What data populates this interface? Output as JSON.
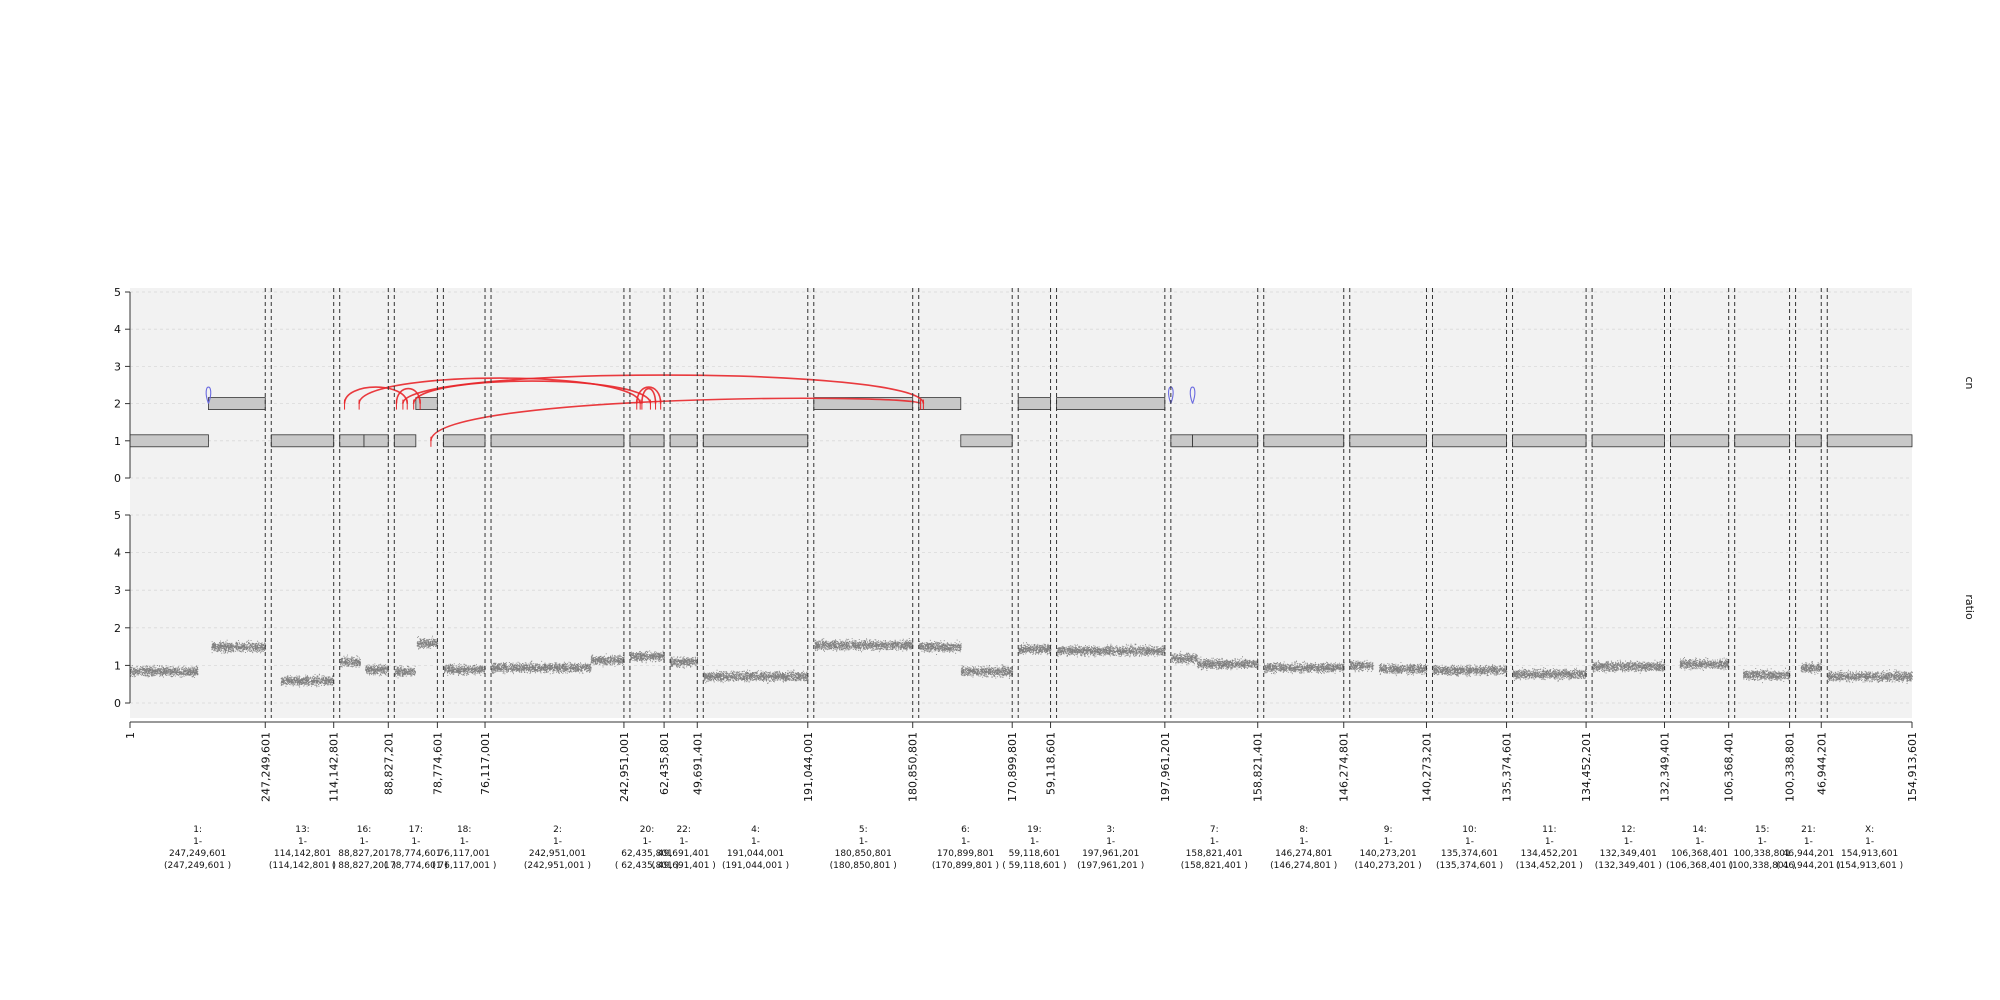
{
  "chart_data": {
    "type": "scatter",
    "title": "",
    "tracks": [
      {
        "name": "cn",
        "ylim": [
          0,
          5
        ],
        "yticks": [
          0,
          1,
          2,
          3,
          4,
          5
        ]
      },
      {
        "name": "ratio",
        "ylim": [
          0,
          5
        ],
        "yticks": [
          0,
          1,
          2,
          3,
          4,
          5
        ]
      }
    ],
    "grid": true,
    "x_axis_labels": [
      "1",
      "247,249,601",
      "114,142,801",
      "88,827,201",
      "78,774,601",
      "76,117,001",
      "242,951,001",
      "62,435,801",
      "49,691,401",
      "191,044,001",
      "180,850,801",
      "170,899,801",
      "59,118,601",
      "197,961,201",
      "158,821,401",
      "146,274,801",
      "140,273,201",
      "135,374,601",
      "134,452,201",
      "132,349,401",
      "106,368,401",
      "100,338,801",
      "46,944,201",
      "154,913,601"
    ],
    "windows": [
      {
        "chrom": "1",
        "lines": [
          "1:",
          "1-",
          "247,249,601",
          "(247,249,601 )"
        ],
        "length": 247249601
      },
      {
        "chrom": "13",
        "lines": [
          "13:",
          "1-",
          "114,142,801",
          "(114,142,801 )"
        ],
        "length": 114142801
      },
      {
        "chrom": "16",
        "lines": [
          "16:",
          "1-",
          "88,827,201",
          "( 88,827,201 )"
        ],
        "length": 88827201
      },
      {
        "chrom": "17",
        "lines": [
          "17:",
          "1-",
          "78,774,601",
          "( 78,774,601 )"
        ],
        "length": 78774601
      },
      {
        "chrom": "18",
        "lines": [
          "18:",
          "1-",
          "76,117,001",
          "( 76,117,001 )"
        ],
        "length": 76117001
      },
      {
        "chrom": "2",
        "lines": [
          "2:",
          "1-",
          "242,951,001",
          "(242,951,001 )"
        ],
        "length": 242951001
      },
      {
        "chrom": "20",
        "lines": [
          "20:",
          "1-",
          "62,435,801",
          "( 62,435,801 )"
        ],
        "length": 62435801
      },
      {
        "chrom": "22",
        "lines": [
          "22:",
          "1-",
          "49,691,401",
          "( 49,691,401 )"
        ],
        "length": 49691401
      },
      {
        "chrom": "4",
        "lines": [
          "4:",
          "1-",
          "191,044,001",
          "(191,044,001 )"
        ],
        "length": 191044001
      },
      {
        "chrom": "5",
        "lines": [
          "5:",
          "1-",
          "180,850,801",
          "(180,850,801 )"
        ],
        "length": 180850801
      },
      {
        "chrom": "6",
        "lines": [
          "6:",
          "1-",
          "170,899,801",
          "(170,899,801 )"
        ],
        "length": 170899801
      },
      {
        "chrom": "19",
        "lines": [
          "19:",
          "1-",
          "59,118,601",
          "( 59,118,601 )"
        ],
        "length": 59118601
      },
      {
        "chrom": "3",
        "lines": [
          "3:",
          "1-",
          "197,961,201",
          "(197,961,201 )"
        ],
        "length": 197961201
      },
      {
        "chrom": "7",
        "lines": [
          "7:",
          "1-",
          "158,821,401",
          "(158,821,401 )"
        ],
        "length": 158821401
      },
      {
        "chrom": "8",
        "lines": [
          "8:",
          "1-",
          "146,274,801",
          "(146,274,801 )"
        ],
        "length": 146274801
      },
      {
        "chrom": "9",
        "lines": [
          "9:",
          "1-",
          "140,273,201",
          "(140,273,201 )"
        ],
        "length": 140273201
      },
      {
        "chrom": "10",
        "lines": [
          "10:",
          "1-",
          "135,374,601",
          "(135,374,601 )"
        ],
        "length": 135374601
      },
      {
        "chrom": "11",
        "lines": [
          "11:",
          "1-",
          "134,452,201",
          "(134,452,201 )"
        ],
        "length": 134452201
      },
      {
        "chrom": "12",
        "lines": [
          "12:",
          "1-",
          "132,349,401",
          "(132,349,401 )"
        ],
        "length": 132349401
      },
      {
        "chrom": "14",
        "lines": [
          "14:",
          "1-",
          "106,368,401",
          "(106,368,401 )"
        ],
        "length": 106368401
      },
      {
        "chrom": "15",
        "lines": [
          "15:",
          "1-",
          "100,338,801",
          "(100,338,801 )"
        ],
        "length": 100338801
      },
      {
        "chrom": "21",
        "lines": [
          "21:",
          "1-",
          "46,944,201",
          "( 46,944,201 )"
        ],
        "length": 46944201
      },
      {
        "chrom": "X",
        "lines": [
          "X:",
          "1-",
          "154,913,601",
          "(154,913,601 )"
        ],
        "length": 154913601
      }
    ],
    "cn_segments": [
      {
        "chrom": "1",
        "start": 0.0,
        "end": 0.58,
        "cn": 1
      },
      {
        "chrom": "1",
        "start": 0.58,
        "end": 1.0,
        "cn": 2
      },
      {
        "chrom": "13",
        "start": 0.0,
        "end": 1.0,
        "cn": 1
      },
      {
        "chrom": "16",
        "start": 0.0,
        "end": 0.5,
        "cn": 1
      },
      {
        "chrom": "16",
        "start": 0.5,
        "end": 1.0,
        "cn": 1
      },
      {
        "chrom": "17",
        "start": 0.0,
        "end": 0.5,
        "cn": 1
      },
      {
        "chrom": "17",
        "start": 0.5,
        "end": 1.0,
        "cn": 2
      },
      {
        "chrom": "18",
        "start": 0.0,
        "end": 1.0,
        "cn": 1
      },
      {
        "chrom": "2",
        "start": 0.0,
        "end": 1.0,
        "cn": 1
      },
      {
        "chrom": "20",
        "start": 0.0,
        "end": 1.0,
        "cn": 1
      },
      {
        "chrom": "22",
        "start": 0.0,
        "end": 1.0,
        "cn": 1
      },
      {
        "chrom": "4",
        "start": 0.0,
        "end": 1.0,
        "cn": 1
      },
      {
        "chrom": "5",
        "start": 0.0,
        "end": 1.0,
        "cn": 2
      },
      {
        "chrom": "6",
        "start": 0.0,
        "end": 0.45,
        "cn": 2
      },
      {
        "chrom": "6",
        "start": 0.45,
        "end": 1.0,
        "cn": 1
      },
      {
        "chrom": "19",
        "start": 0.0,
        "end": 1.0,
        "cn": 2
      },
      {
        "chrom": "3",
        "start": 0.0,
        "end": 1.0,
        "cn": 2
      },
      {
        "chrom": "7",
        "start": 0.0,
        "end": 0.25,
        "cn": 1
      },
      {
        "chrom": "7",
        "start": 0.25,
        "end": 1.0,
        "cn": 1
      },
      {
        "chrom": "8",
        "start": 0.0,
        "end": 1.0,
        "cn": 1
      },
      {
        "chrom": "9",
        "start": 0.0,
        "end": 1.0,
        "cn": 1
      },
      {
        "chrom": "10",
        "start": 0.0,
        "end": 1.0,
        "cn": 1
      },
      {
        "chrom": "11",
        "start": 0.0,
        "end": 1.0,
        "cn": 1
      },
      {
        "chrom": "12",
        "start": 0.0,
        "end": 1.0,
        "cn": 1
      },
      {
        "chrom": "14",
        "start": 0.0,
        "end": 1.0,
        "cn": 1
      },
      {
        "chrom": "15",
        "start": 0.0,
        "end": 1.0,
        "cn": 1
      },
      {
        "chrom": "21",
        "start": 0.0,
        "end": 1.0,
        "cn": 1
      },
      {
        "chrom": "X",
        "start": 0.0,
        "end": 1.0,
        "cn": 1
      }
    ],
    "ratio_levels": [
      {
        "chrom": "1",
        "start": 0.0,
        "end": 0.5,
        "ratio": 0.85
      },
      {
        "chrom": "1",
        "start": 0.6,
        "end": 1.0,
        "ratio": 1.5
      },
      {
        "chrom": "13",
        "start": 0.15,
        "end": 1.0,
        "ratio": 0.6
      },
      {
        "chrom": "16",
        "start": 0.0,
        "end": 0.42,
        "ratio": 1.1
      },
      {
        "chrom": "16",
        "start": 0.52,
        "end": 1.0,
        "ratio": 0.9
      },
      {
        "chrom": "17",
        "start": 0.0,
        "end": 0.48,
        "ratio": 0.85
      },
      {
        "chrom": "17",
        "start": 0.52,
        "end": 1.0,
        "ratio": 1.6
      },
      {
        "chrom": "18",
        "start": 0.0,
        "end": 1.0,
        "ratio": 0.9
      },
      {
        "chrom": "2",
        "start": 0.0,
        "end": 0.75,
        "ratio": 0.95
      },
      {
        "chrom": "2",
        "start": 0.75,
        "end": 1.0,
        "ratio": 1.15
      },
      {
        "chrom": "20",
        "start": 0.0,
        "end": 1.0,
        "ratio": 1.25
      },
      {
        "chrom": "22",
        "start": 0.0,
        "end": 1.0,
        "ratio": 1.1
      },
      {
        "chrom": "4",
        "start": 0.0,
        "end": 1.0,
        "ratio": 0.72
      },
      {
        "chrom": "5",
        "start": 0.0,
        "end": 1.0,
        "ratio": 1.55
      },
      {
        "chrom": "6",
        "start": 0.0,
        "end": 0.45,
        "ratio": 1.5
      },
      {
        "chrom": "6",
        "start": 0.45,
        "end": 1.0,
        "ratio": 0.85
      },
      {
        "chrom": "19",
        "start": 0.0,
        "end": 1.0,
        "ratio": 1.45
      },
      {
        "chrom": "3",
        "start": 0.0,
        "end": 1.0,
        "ratio": 1.4
      },
      {
        "chrom": "7",
        "start": 0.0,
        "end": 0.3,
        "ratio": 1.2
      },
      {
        "chrom": "7",
        "start": 0.3,
        "end": 1.0,
        "ratio": 1.05
      },
      {
        "chrom": "8",
        "start": 0.0,
        "end": 1.0,
        "ratio": 0.95
      },
      {
        "chrom": "9",
        "start": 0.0,
        "end": 0.3,
        "ratio": 1.0
      },
      {
        "chrom": "9",
        "start": 0.38,
        "end": 1.0,
        "ratio": 0.92
      },
      {
        "chrom": "10",
        "start": 0.0,
        "end": 1.0,
        "ratio": 0.88
      },
      {
        "chrom": "11",
        "start": 0.0,
        "end": 1.0,
        "ratio": 0.78
      },
      {
        "chrom": "12",
        "start": 0.0,
        "end": 1.0,
        "ratio": 0.98
      },
      {
        "chrom": "14",
        "start": 0.15,
        "end": 1.0,
        "ratio": 1.05
      },
      {
        "chrom": "15",
        "start": 0.15,
        "end": 1.0,
        "ratio": 0.75
      },
      {
        "chrom": "21",
        "start": 0.2,
        "end": 1.0,
        "ratio": 0.95
      },
      {
        "chrom": "X",
        "start": 0.0,
        "end": 1.0,
        "ratio": 0.72
      }
    ],
    "junctions": [
      {
        "a": {
          "chrom": "16",
          "pos": 0.4,
          "cn": 2
        },
        "b": {
          "chrom": "20",
          "pos": 0.3,
          "cn": 2
        },
        "height": 0.6
      },
      {
        "a": {
          "chrom": "17",
          "pos": 0.2,
          "cn": 2
        },
        "b": {
          "chrom": "6",
          "pos": 0.05,
          "cn": 2
        },
        "height": 0.7
      },
      {
        "a": {
          "chrom": "17",
          "pos": 0.45,
          "cn": 2
        },
        "b": {
          "chrom": "20",
          "pos": 0.6,
          "cn": 2
        },
        "height": 0.5
      },
      {
        "a": {
          "chrom": "17",
          "pos": 0.85,
          "cn": 1
        },
        "b": {
          "chrom": "6",
          "pos": 0.02,
          "cn": 2
        },
        "height": 0.0
      },
      {
        "a": {
          "chrom": "20",
          "pos": 0.2,
          "cn": 2
        },
        "b": {
          "chrom": "20",
          "pos": 0.9,
          "cn": 2
        },
        "height": 0.3
      },
      {
        "a": {
          "chrom": "20",
          "pos": 0.35,
          "cn": 2
        },
        "b": {
          "chrom": "20",
          "pos": 0.75,
          "cn": 2
        },
        "height": 0.25
      },
      {
        "a": {
          "chrom": "17",
          "pos": 0.05,
          "cn": 2
        },
        "b": {
          "chrom": "17",
          "pos": 0.6,
          "cn": 2
        },
        "height": 0.25
      },
      {
        "a": {
          "chrom": "16",
          "pos": 0.1,
          "cn": 2
        },
        "b": {
          "chrom": "17",
          "pos": 0.3,
          "cn": 2
        },
        "height": 0.3
      }
    ],
    "loops": [
      {
        "chrom": "1",
        "pos": 0.58,
        "cn": 2
      },
      {
        "chrom": "7",
        "pos": 0.0,
        "cn": 2
      },
      {
        "chrom": "7",
        "pos": 0.25,
        "cn": 2
      }
    ]
  }
}
